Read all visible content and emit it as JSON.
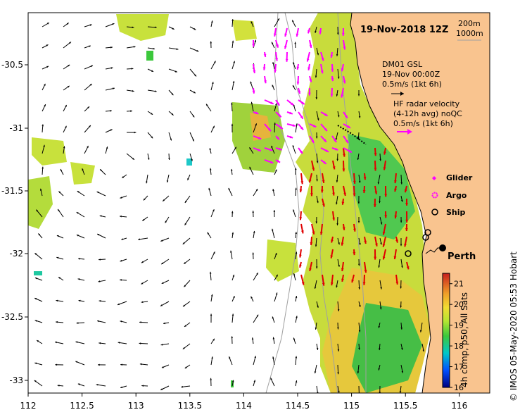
{
  "map_title": "19-Nov-2018 12Z",
  "depth_contours": [
    "200m",
    "1000m"
  ],
  "mooring": {
    "name": "DM01 GSL",
    "time": "19-Nov 00:00Z",
    "scale": "0.5m/s (1kt 6h)"
  },
  "hf_radar": {
    "line1": "HF radar velocity",
    "line2": "(4-12h avg) noQC",
    "scale": "0.5m/s (1kt 6h)"
  },
  "platform_legend": [
    {
      "label": "Glider",
      "color": "#ff00ff"
    },
    {
      "label": "Argo",
      "color": "#ff00ff"
    },
    {
      "label": "Ship",
      "color": "#000000"
    }
  ],
  "city": "Perth",
  "colorbar": {
    "title": "4h comp, p50, All Sats",
    "ticks": [
      "21",
      "20",
      "19",
      "18",
      "17",
      "16"
    ],
    "min": 16,
    "max": 21.5
  },
  "x_ticks": [
    "112",
    "112.5",
    "113",
    "113.5",
    "114",
    "114.5",
    "115",
    "115.5",
    "116"
  ],
  "y_ticks": [
    "-30.5",
    "-31",
    "-31.5",
    "-32",
    "-32.5",
    "-33"
  ],
  "credit": "© IMOS 05-May-2020 05:53 Hobart",
  "colors": {
    "land": "#f9c48f",
    "glider": "#ff00ff",
    "radar_vec": "#ff00ff",
    "model_vec": "#e00000"
  }
}
